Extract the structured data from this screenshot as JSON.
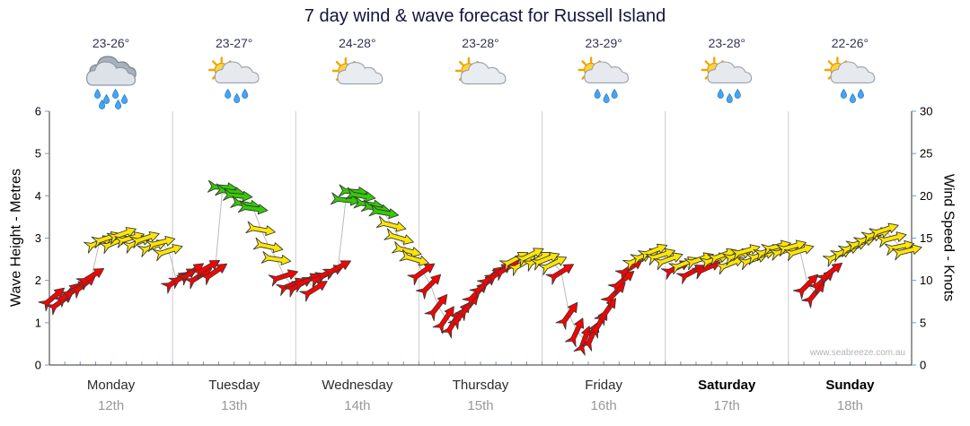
{
  "chart_data": {
    "type": "wind_forecast",
    "title": "7 day wind & wave forecast for Russell Island",
    "ylabel_left": "Wave Height - Metres",
    "ylabel_right": "Wind Speed - Knots",
    "ylim_left": [
      0,
      6
    ],
    "ylim_right": [
      0,
      30
    ],
    "yticks_left": [
      0,
      1,
      2,
      3,
      4,
      5,
      6
    ],
    "yticks_right": [
      0,
      5,
      10,
      15,
      20,
      25,
      30
    ],
    "minor_ticks_per_day": 8,
    "watermark": "www.seabreeze.com.au",
    "days": [
      {
        "name": "Monday",
        "date": "12th",
        "temp": "23-26°",
        "icon": "rain",
        "bold": false
      },
      {
        "name": "Tuesday",
        "date": "13th",
        "temp": "23-27°",
        "icon": "sun-shower",
        "bold": false
      },
      {
        "name": "Wednesday",
        "date": "14th",
        "temp": "24-28°",
        "icon": "sun-cloud",
        "bold": false
      },
      {
        "name": "Thursday",
        "date": "15th",
        "temp": "23-28°",
        "icon": "sun-cloud",
        "bold": false
      },
      {
        "name": "Friday",
        "date": "16th",
        "temp": "23-29°",
        "icon": "sun-shower",
        "bold": false
      },
      {
        "name": "Saturday",
        "date": "17th",
        "temp": "23-28°",
        "icon": "sun-shower",
        "bold": true
      },
      {
        "name": "Sunday",
        "date": "18th",
        "temp": "22-26°",
        "icon": "sun-shower",
        "bold": true
      }
    ],
    "wind_speed_colors": {
      "low": "#ff0000",
      "mid": "#ffe600",
      "high": "#33cc00",
      "low_max_knots": 12,
      "mid_max_knots": 18
    },
    "arrows_per_day": 16,
    "wind_arrows_knots_dir": [
      [
        8,
        -40
      ],
      [
        7.5,
        -36
      ],
      [
        8.5,
        -42
      ],
      [
        9,
        -35
      ],
      [
        9.5,
        -38
      ],
      [
        10.5,
        -32
      ],
      [
        14.5,
        -22
      ],
      [
        15,
        -18
      ],
      [
        14.5,
        -24
      ],
      [
        15.5,
        -20
      ],
      [
        15,
        -16
      ],
      [
        14.5,
        -22
      ],
      [
        15,
        -18
      ],
      [
        14,
        -20
      ],
      [
        14.5,
        -14
      ],
      [
        13.5,
        -18
      ],
      [
        10,
        -34
      ],
      [
        10.5,
        -30
      ],
      [
        11,
        -36
      ],
      [
        10.5,
        -32
      ],
      [
        11.5,
        -30
      ],
      [
        11,
        -34
      ],
      [
        21,
        4
      ],
      [
        20.5,
        8
      ],
      [
        20,
        5
      ],
      [
        19,
        10
      ],
      [
        18.5,
        8
      ],
      [
        16,
        10
      ],
      [
        14,
        12
      ],
      [
        12.5,
        8
      ],
      [
        10.5,
        -18
      ],
      [
        9.5,
        -22
      ],
      [
        9.5,
        -30
      ],
      [
        10,
        -26
      ],
      [
        9,
        -32
      ],
      [
        10.5,
        -28
      ],
      [
        11,
        -24
      ],
      [
        11.5,
        -28
      ],
      [
        19.5,
        6
      ],
      [
        20.5,
        4
      ],
      [
        20,
        10
      ],
      [
        19,
        8
      ],
      [
        18.5,
        12
      ],
      [
        18,
        10
      ],
      [
        16.5,
        14
      ],
      [
        15,
        16
      ],
      [
        13.5,
        14
      ],
      [
        12.5,
        16
      ],
      [
        11,
        -35
      ],
      [
        9.5,
        -45
      ],
      [
        7,
        -52
      ],
      [
        5.5,
        -56
      ],
      [
        5,
        -60
      ],
      [
        6,
        -55
      ],
      [
        7,
        -50
      ],
      [
        8.5,
        -46
      ],
      [
        9.5,
        -42
      ],
      [
        10.5,
        -40
      ],
      [
        11,
        -36
      ],
      [
        11.5,
        -32
      ],
      [
        12.5,
        -28
      ],
      [
        12,
        -30
      ],
      [
        13,
        -26
      ],
      [
        12.5,
        -28
      ],
      [
        12.5,
        -22
      ],
      [
        12,
        -26
      ],
      [
        11,
        -32
      ],
      [
        6,
        -55
      ],
      [
        4,
        -65
      ],
      [
        3,
        -70
      ],
      [
        3.5,
        -66
      ],
      [
        5,
        -60
      ],
      [
        6.5,
        -55
      ],
      [
        8.5,
        -46
      ],
      [
        10,
        -40
      ],
      [
        11.5,
        -34
      ],
      [
        12.5,
        -26
      ],
      [
        13,
        -20
      ],
      [
        13.5,
        -22
      ],
      [
        13,
        -18
      ],
      [
        12.5,
        -20
      ],
      [
        11.5,
        -26
      ],
      [
        12,
        -22
      ],
      [
        11,
        -28
      ],
      [
        12.5,
        -20
      ],
      [
        11.5,
        -24
      ],
      [
        12.5,
        -18
      ],
      [
        13,
        -20
      ],
      [
        12,
        -22
      ],
      [
        13,
        -18
      ],
      [
        13.5,
        -16
      ],
      [
        12.5,
        -20
      ],
      [
        13,
        -16
      ],
      [
        13.5,
        -18
      ],
      [
        14,
        -14
      ],
      [
        13.5,
        -16
      ],
      [
        14,
        -16
      ],
      [
        13.5,
        -18
      ],
      [
        9.5,
        -45
      ],
      [
        8.5,
        -50
      ],
      [
        10,
        -42
      ],
      [
        11,
        -38
      ],
      [
        13,
        -26
      ],
      [
        13.5,
        -22
      ],
      [
        14,
        -20
      ],
      [
        14.5,
        -18
      ],
      [
        15,
        -20
      ],
      [
        15.5,
        -16
      ],
      [
        16,
        -18
      ],
      [
        15,
        -14
      ],
      [
        14,
        -12
      ],
      [
        13.5,
        -14
      ]
    ]
  }
}
